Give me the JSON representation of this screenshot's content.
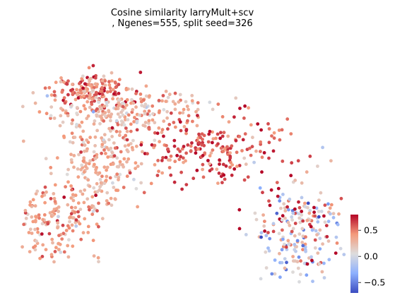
{
  "chart_data": {
    "type": "scatter",
    "title_line1": "Cosine similarity larryMult+scv",
    "title_line2": ", Ngenes=555, split seed=326",
    "xlabel": "",
    "ylabel": "",
    "axes_visible": false,
    "grid": false,
    "colorbar": {
      "colormap": "coolwarm",
      "range": [
        -0.7,
        0.8
      ],
      "ticks": [
        0.5,
        0.0,
        -0.5
      ],
      "tick_labels": [
        "0.5",
        "0.0",
        "−0.5"
      ]
    },
    "regions": [
      {
        "name": "upper-left-cluster",
        "center": [
          0.21,
          0.8
        ],
        "spread": [
          0.06,
          0.035
        ],
        "count": 140,
        "mean": 0.5,
        "sd": 0.18
      },
      {
        "name": "upper-band",
        "center": [
          0.32,
          0.71
        ],
        "spread": [
          0.12,
          0.05
        ],
        "count": 220,
        "mean": 0.3,
        "sd": 0.2
      },
      {
        "name": "middle-stem",
        "center": [
          0.24,
          0.5
        ],
        "spread": [
          0.07,
          0.09
        ],
        "count": 200,
        "mean": 0.3,
        "sd": 0.15
      },
      {
        "name": "lower-left-lobe",
        "center": [
          0.09,
          0.26
        ],
        "spread": [
          0.08,
          0.07
        ],
        "count": 190,
        "mean": 0.38,
        "sd": 0.16
      },
      {
        "name": "diagonal-red-band",
        "center": [
          0.58,
          0.55
        ],
        "spread": [
          0.11,
          0.07
        ],
        "count": 210,
        "mean": 0.6,
        "sd": 0.15
      },
      {
        "name": "right-lower-mixed",
        "center": [
          0.86,
          0.2
        ],
        "spread": [
          0.07,
          0.12
        ],
        "count": 230,
        "mean": 0.15,
        "sd": 0.45
      }
    ]
  }
}
